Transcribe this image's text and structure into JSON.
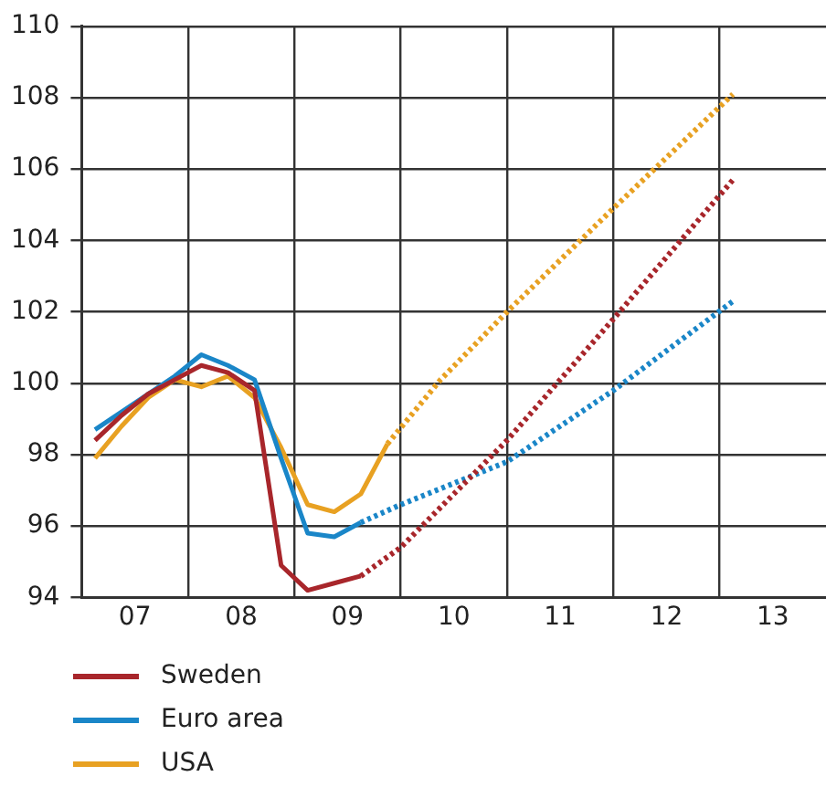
{
  "chart_data": {
    "type": "line",
    "xlim": [
      6.5,
      13.5
    ],
    "ylim": [
      94,
      110
    ],
    "yticks": [
      94,
      96,
      98,
      100,
      102,
      104,
      106,
      108,
      110
    ],
    "xticks": [
      {
        "value": 7,
        "label": "07"
      },
      {
        "value": 7.5,
        "label": null
      },
      {
        "value": 8,
        "label": "08"
      },
      {
        "value": 8.5,
        "label": null
      },
      {
        "value": 9,
        "label": "09"
      },
      {
        "value": 9.5,
        "label": null
      },
      {
        "value": 10,
        "label": "10"
      },
      {
        "value": 10.5,
        "label": null
      },
      {
        "value": 11,
        "label": "11"
      },
      {
        "value": 11.5,
        "label": null
      },
      {
        "value": 12,
        "label": "12"
      },
      {
        "value": 12.5,
        "label": null
      },
      {
        "value": 13,
        "label": "13"
      }
    ],
    "grid": true,
    "legend": "bottom",
    "marker": "none",
    "series": [
      {
        "name": "Sweden",
        "color": "#a8262b",
        "line_style": "solid",
        "x": [
          6.625,
          6.875,
          7.125,
          7.375,
          7.625,
          7.875,
          8.125,
          8.375,
          8.625,
          8.875,
          9.125
        ],
        "values": [
          98.4,
          99.1,
          99.7,
          100.1,
          100.5,
          100.3,
          99.8,
          94.9,
          94.2,
          94.4,
          94.6
        ]
      },
      {
        "name": "Euro area",
        "color": "#1a86c8",
        "line_style": "solid",
        "x": [
          6.625,
          6.875,
          7.125,
          7.375,
          7.625,
          7.875,
          8.125,
          8.375,
          8.625,
          8.875,
          9.125
        ],
        "values": [
          98.7,
          99.2,
          99.7,
          100.2,
          100.8,
          100.5,
          100.1,
          97.9,
          95.8,
          95.7,
          96.1
        ]
      },
      {
        "name": "USA",
        "color": "#e8a122",
        "line_style": "solid",
        "x": [
          6.625,
          6.875,
          7.125,
          7.375,
          7.625,
          7.875,
          8.125,
          8.375,
          8.625,
          8.875,
          9.125,
          9.375
        ],
        "values": [
          97.9,
          98.8,
          99.6,
          100.1,
          99.9,
          100.2,
          99.6,
          98.2,
          96.6,
          96.4,
          96.9,
          98.3
        ]
      },
      {
        "color": "#a8262b",
        "line_style": "dotted",
        "x": [
          9.125,
          9.5,
          10,
          10.5,
          11.5,
          12.625
        ],
        "values": [
          94.6,
          95.4,
          96.9,
          98.4,
          101.8,
          105.7
        ]
      },
      {
        "color": "#1a86c8",
        "line_style": "dotted",
        "x": [
          9.125,
          9.5,
          10.5,
          11.5,
          12.625
        ],
        "values": [
          96.1,
          96.6,
          97.8,
          99.8,
          102.3
        ]
      },
      {
        "color": "#e8a122",
        "line_style": "dotted",
        "x": [
          9.375,
          9.875,
          10.5,
          11.5,
          12.625
        ],
        "values": [
          98.3,
          100.1,
          102.0,
          104.9,
          108.1
        ]
      }
    ]
  }
}
